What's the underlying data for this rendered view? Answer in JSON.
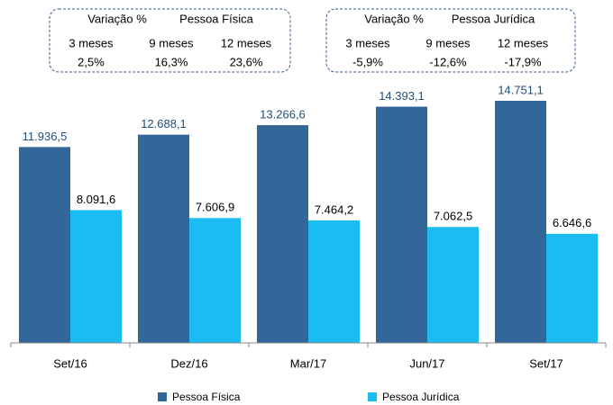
{
  "chart_data": {
    "type": "bar",
    "categories": [
      "Set/16",
      "Dez/16",
      "Mar/17",
      "Jun/17",
      "Set/17"
    ],
    "series": [
      {
        "name": "Pessoa Física",
        "color": "#336699",
        "label_color": "#1f4e79",
        "values": [
          11936.5,
          12688.1,
          13266.6,
          14393.1,
          14751.1
        ],
        "value_labels": [
          "11.936,5",
          "12.688,1",
          "13.266,6",
          "14.393,1",
          "14.751,1"
        ]
      },
      {
        "name": "Pessoa Jurídica",
        "color": "#1bbcf2",
        "label_color": "#000000",
        "values": [
          8091.6,
          7606.9,
          7464.2,
          7062.5,
          6646.6
        ],
        "value_labels": [
          "8.091,6",
          "7.606,9",
          "7.464,2",
          "7.062,5",
          "6.646,6"
        ]
      }
    ],
    "annotations": [
      {
        "header": [
          "Variação %",
          "Pessoa Física"
        ],
        "columns": [
          "3 meses",
          "9 meses",
          "12 meses"
        ],
        "values": [
          2.5,
          16.3,
          23.6
        ],
        "value_labels": [
          "2,5%",
          "16,3%",
          "23,6%"
        ]
      },
      {
        "header": [
          "Variação %",
          "Pessoa Jurídica"
        ],
        "columns": [
          "3 meses",
          "9 meses",
          "12 meses"
        ],
        "values": [
          -5.9,
          -12.6,
          -17.9
        ],
        "value_labels": [
          "-5,9%",
          "-12,6%",
          "-17,9%"
        ]
      }
    ],
    "legend": "bottom"
  }
}
